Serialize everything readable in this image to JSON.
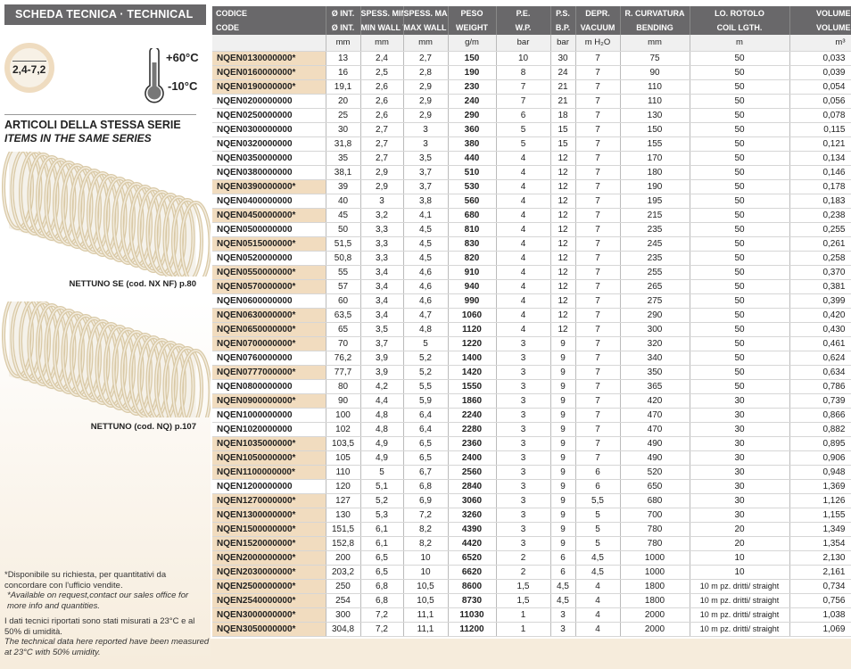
{
  "panel": {
    "title": "SCHEDA TECNICA · TECHNICAL DATA",
    "ring_label": "2,4-7,2",
    "temp_max": "+60°C",
    "temp_min": "-10°C",
    "series_it": "ARTICOLI DELLA STESSA SERIE",
    "series_en": "ITEMS IN THE SAME SERIES",
    "related": [
      "NETTUNO SE (cod. NX NF) p.80",
      "NETTUNO (cod. NQ) p.107"
    ],
    "note1_it": "*Disponibile su richiesta, per quantitativi da concordare con l'ufficio vendite.",
    "note1_en": "*Available on request,contact our sales office for more info and quantities.",
    "note2_it": "I dati tecnici riportati sono stati misurati a 23°C e al 50% di umidità.",
    "note2_en": "The technical data here reported have been measured at 23°C with 50% umidity.",
    "colors": {
      "header": "#69686a",
      "highlight": "#f1dcbf",
      "ring": "#efdcc0"
    }
  },
  "table": {
    "head_it": [
      "CODICE",
      "Ø INT.",
      "SPESS. MIN.",
      "SPESS. MAX.",
      "PESO",
      "P.E.",
      "P.S.",
      "DEPR.",
      "R. CURVATURA",
      "LO. ROTOLO",
      "VOLUME"
    ],
    "head_en": [
      "CODE",
      "Ø INT.",
      "MIN WALL TH.",
      "MAX WALL TH.",
      "WEIGHT",
      "W.P.",
      "B.P.",
      "VACUUM",
      "BENDING",
      "COIL LGTH.",
      "VOLUME"
    ],
    "units": [
      "",
      "mm",
      "mm",
      "mm",
      "g/m",
      "bar",
      "bar",
      "m H₂O",
      "mm",
      "m",
      "m³"
    ],
    "rows": [
      [
        "NQEN0130000000*",
        "13",
        "2,4",
        "2,7",
        "150",
        "10",
        "30",
        "7",
        "75",
        "50",
        "0,033"
      ],
      [
        "NQEN0160000000*",
        "16",
        "2,5",
        "2,8",
        "190",
        "8",
        "24",
        "7",
        "90",
        "50",
        "0,039"
      ],
      [
        "NQEN0190000000*",
        "19,1",
        "2,6",
        "2,9",
        "230",
        "7",
        "21",
        "7",
        "110",
        "50",
        "0,054"
      ],
      [
        "NQEN0200000000",
        "20",
        "2,6",
        "2,9",
        "240",
        "7",
        "21",
        "7",
        "110",
        "50",
        "0,056"
      ],
      [
        "NQEN0250000000",
        "25",
        "2,6",
        "2,9",
        "290",
        "6",
        "18",
        "7",
        "130",
        "50",
        "0,078"
      ],
      [
        "NQEN0300000000",
        "30",
        "2,7",
        "3",
        "360",
        "5",
        "15",
        "7",
        "150",
        "50",
        "0,115"
      ],
      [
        "NQEN0320000000",
        "31,8",
        "2,7",
        "3",
        "380",
        "5",
        "15",
        "7",
        "155",
        "50",
        "0,121"
      ],
      [
        "NQEN0350000000",
        "35",
        "2,7",
        "3,5",
        "440",
        "4",
        "12",
        "7",
        "170",
        "50",
        "0,134"
      ],
      [
        "NQEN0380000000",
        "38,1",
        "2,9",
        "3,7",
        "510",
        "4",
        "12",
        "7",
        "180",
        "50",
        "0,146"
      ],
      [
        "NQEN0390000000*",
        "39",
        "2,9",
        "3,7",
        "530",
        "4",
        "12",
        "7",
        "190",
        "50",
        "0,178"
      ],
      [
        "NQEN0400000000",
        "40",
        "3",
        "3,8",
        "560",
        "4",
        "12",
        "7",
        "195",
        "50",
        "0,183"
      ],
      [
        "NQEN0450000000*",
        "45",
        "3,2",
        "4,1",
        "680",
        "4",
        "12",
        "7",
        "215",
        "50",
        "0,238"
      ],
      [
        "NQEN0500000000",
        "50",
        "3,3",
        "4,5",
        "810",
        "4",
        "12",
        "7",
        "235",
        "50",
        "0,255"
      ],
      [
        "NQEN0515000000*",
        "51,5",
        "3,3",
        "4,5",
        "830",
        "4",
        "12",
        "7",
        "245",
        "50",
        "0,261"
      ],
      [
        "NQEN0520000000",
        "50,8",
        "3,3",
        "4,5",
        "820",
        "4",
        "12",
        "7",
        "235",
        "50",
        "0,258"
      ],
      [
        "NQEN0550000000*",
        "55",
        "3,4",
        "4,6",
        "910",
        "4",
        "12",
        "7",
        "255",
        "50",
        "0,370"
      ],
      [
        "NQEN0570000000*",
        "57",
        "3,4",
        "4,6",
        "940",
        "4",
        "12",
        "7",
        "265",
        "50",
        "0,381"
      ],
      [
        "NQEN0600000000",
        "60",
        "3,4",
        "4,6",
        "990",
        "4",
        "12",
        "7",
        "275",
        "50",
        "0,399"
      ],
      [
        "NQEN0630000000*",
        "63,5",
        "3,4",
        "4,7",
        "1060",
        "4",
        "12",
        "7",
        "290",
        "50",
        "0,420"
      ],
      [
        "NQEN0650000000*",
        "65",
        "3,5",
        "4,8",
        "1120",
        "4",
        "12",
        "7",
        "300",
        "50",
        "0,430"
      ],
      [
        "NQEN0700000000*",
        "70",
        "3,7",
        "5",
        "1220",
        "3",
        "9",
        "7",
        "320",
        "50",
        "0,461"
      ],
      [
        "NQEN0760000000",
        "76,2",
        "3,9",
        "5,2",
        "1400",
        "3",
        "9",
        "7",
        "340",
        "50",
        "0,624"
      ],
      [
        "NQEN0777000000*",
        "77,7",
        "3,9",
        "5,2",
        "1420",
        "3",
        "9",
        "7",
        "350",
        "50",
        "0,634"
      ],
      [
        "NQEN0800000000",
        "80",
        "4,2",
        "5,5",
        "1550",
        "3",
        "9",
        "7",
        "365",
        "50",
        "0,786"
      ],
      [
        "NQEN0900000000*",
        "90",
        "4,4",
        "5,9",
        "1860",
        "3",
        "9",
        "7",
        "420",
        "30",
        "0,739"
      ],
      [
        "NQEN1000000000",
        "100",
        "4,8",
        "6,4",
        "2240",
        "3",
        "9",
        "7",
        "470",
        "30",
        "0,866"
      ],
      [
        "NQEN1020000000",
        "102",
        "4,8",
        "6,4",
        "2280",
        "3",
        "9",
        "7",
        "470",
        "30",
        "0,882"
      ],
      [
        "NQEN1035000000*",
        "103,5",
        "4,9",
        "6,5",
        "2360",
        "3",
        "9",
        "7",
        "490",
        "30",
        "0,895"
      ],
      [
        "NQEN1050000000*",
        "105",
        "4,9",
        "6,5",
        "2400",
        "3",
        "9",
        "7",
        "490",
        "30",
        "0,906"
      ],
      [
        "NQEN1100000000*",
        "110",
        "5",
        "6,7",
        "2560",
        "3",
        "9",
        "6",
        "520",
        "30",
        "0,948"
      ],
      [
        "NQEN1200000000",
        "120",
        "5,1",
        "6,8",
        "2840",
        "3",
        "9",
        "6",
        "650",
        "30",
        "1,369"
      ],
      [
        "NQEN1270000000*",
        "127",
        "5,2",
        "6,9",
        "3060",
        "3",
        "9",
        "5,5",
        "680",
        "30",
        "1,126"
      ],
      [
        "NQEN1300000000*",
        "130",
        "5,3",
        "7,2",
        "3260",
        "3",
        "9",
        "5",
        "700",
        "30",
        "1,155"
      ],
      [
        "NQEN1500000000*",
        "151,5",
        "6,1",
        "8,2",
        "4390",
        "3",
        "9",
        "5",
        "780",
        "20",
        "1,349"
      ],
      [
        "NQEN1520000000*",
        "152,8",
        "6,1",
        "8,2",
        "4420",
        "3",
        "9",
        "5",
        "780",
        "20",
        "1,354"
      ],
      [
        "NQEN2000000000*",
        "200",
        "6,5",
        "10",
        "6520",
        "2",
        "6",
        "4,5",
        "1000",
        "10",
        "2,130"
      ],
      [
        "NQEN2030000000*",
        "203,2",
        "6,5",
        "10",
        "6620",
        "2",
        "6",
        "4,5",
        "1000",
        "10",
        "2,161"
      ],
      [
        "NQEN2500000000*",
        "250",
        "6,8",
        "10,5",
        "8600",
        "1,5",
        "4,5",
        "4",
        "1800",
        "10 m pz. dritti/ straight",
        "0,734"
      ],
      [
        "NQEN2540000000*",
        "254",
        "6,8",
        "10,5",
        "8730",
        "1,5",
        "4,5",
        "4",
        "1800",
        "10 m pz. dritti/ straight",
        "0,756"
      ],
      [
        "NQEN3000000000*",
        "300",
        "7,2",
        "11,1",
        "11030",
        "1",
        "3",
        "4",
        "2000",
        "10 m pz. dritti/ straight",
        "1,038"
      ],
      [
        "NQEN3050000000*",
        "304,8",
        "7,2",
        "11,1",
        "11200",
        "1",
        "3",
        "4",
        "2000",
        "10 m pz. dritti/ straight",
        "1,069"
      ]
    ]
  }
}
